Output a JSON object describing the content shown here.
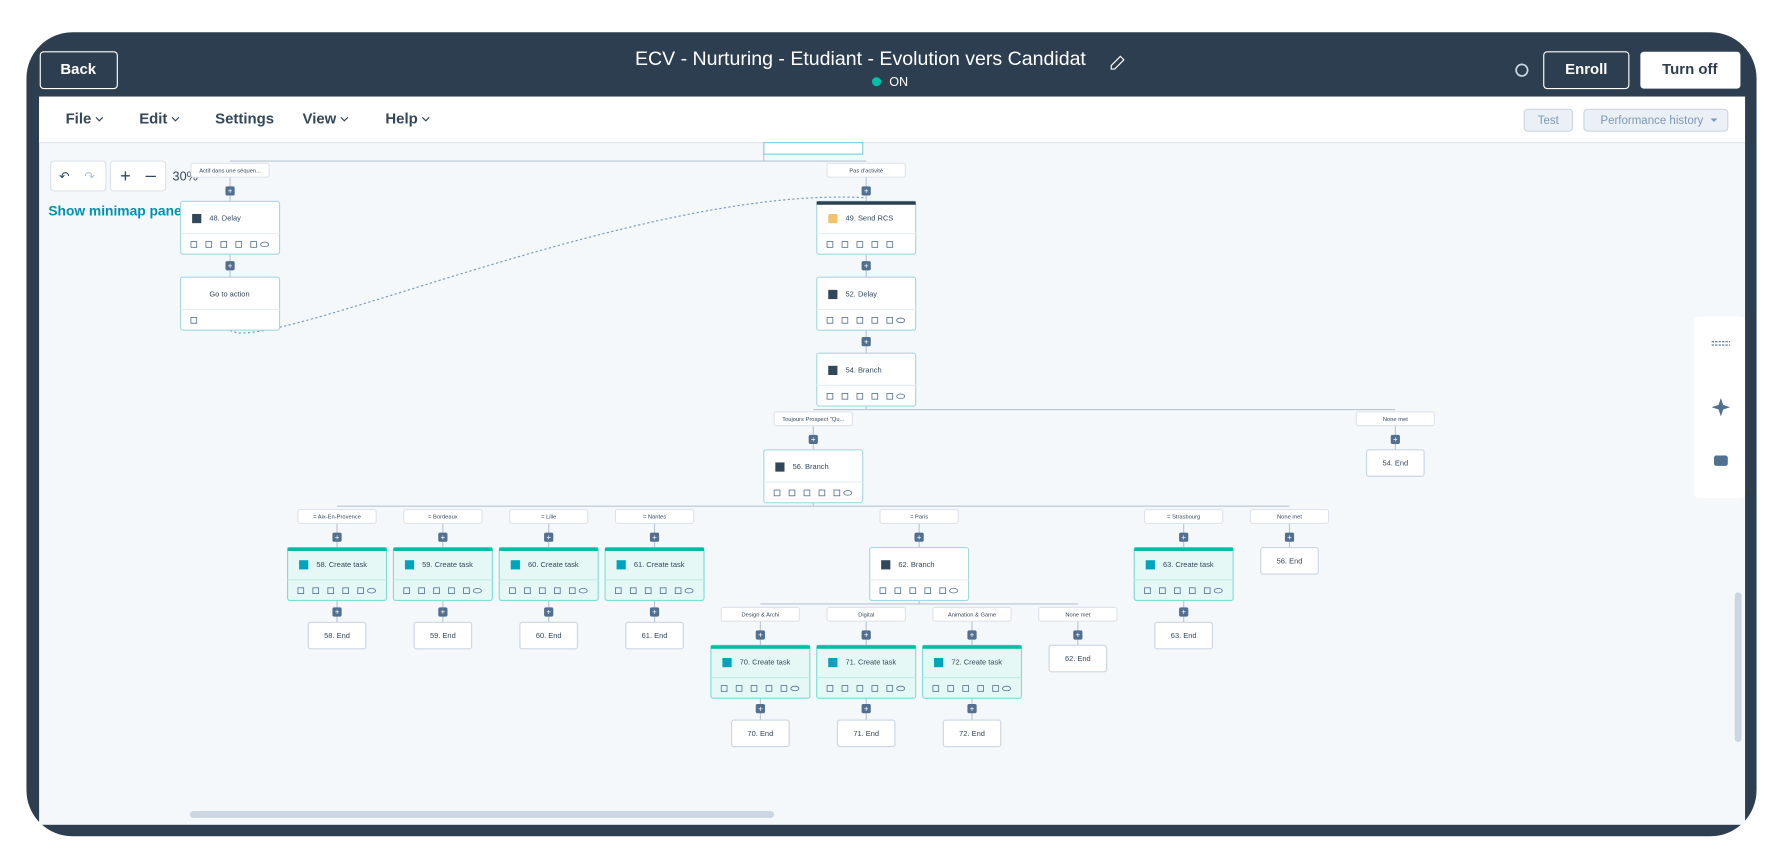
{
  "header": {
    "back": "Back",
    "title": "ECV - Nurturing - Etudiant - Evolution vers Candidat",
    "status": "ON",
    "enroll": "Enroll",
    "turn_off": "Turn off"
  },
  "menu": {
    "items": [
      "File",
      "Edit",
      "Settings",
      "View",
      "Help"
    ],
    "test": "Test",
    "performance": "Performance history"
  },
  "canvas": {
    "zoom": "30%",
    "minimap": "Show minimap panel"
  },
  "nodes": [
    "48. Delay",
    "Go to action",
    "49. Send RCS",
    "52. Delay",
    "54. Branch",
    "56. Branch",
    "58. Create task",
    "59. Create task",
    "60. Create task",
    "61. Create task",
    "62. Branch",
    "63. Create task",
    "70. Create task",
    "71. Create task",
    "72. Create task"
  ],
  "ends": [
    "54. End",
    "56. End",
    "58. End",
    "59. End",
    "60. End",
    "61. End",
    "62. End",
    "63. End",
    "70. End",
    "71. End",
    "72. End"
  ],
  "branch_labels": [
    "Actif dans une séquen...",
    "Pas d'activité",
    "Toujours Prospect \"Qu...",
    "None met",
    "= Aix-En-Provence",
    "= Bordeaux",
    "= Lille",
    "= Nantes",
    "= Paris",
    "= Strasbourg",
    "None met",
    "Design & Archi",
    "Digital",
    "Animation & Game",
    "None met"
  ]
}
